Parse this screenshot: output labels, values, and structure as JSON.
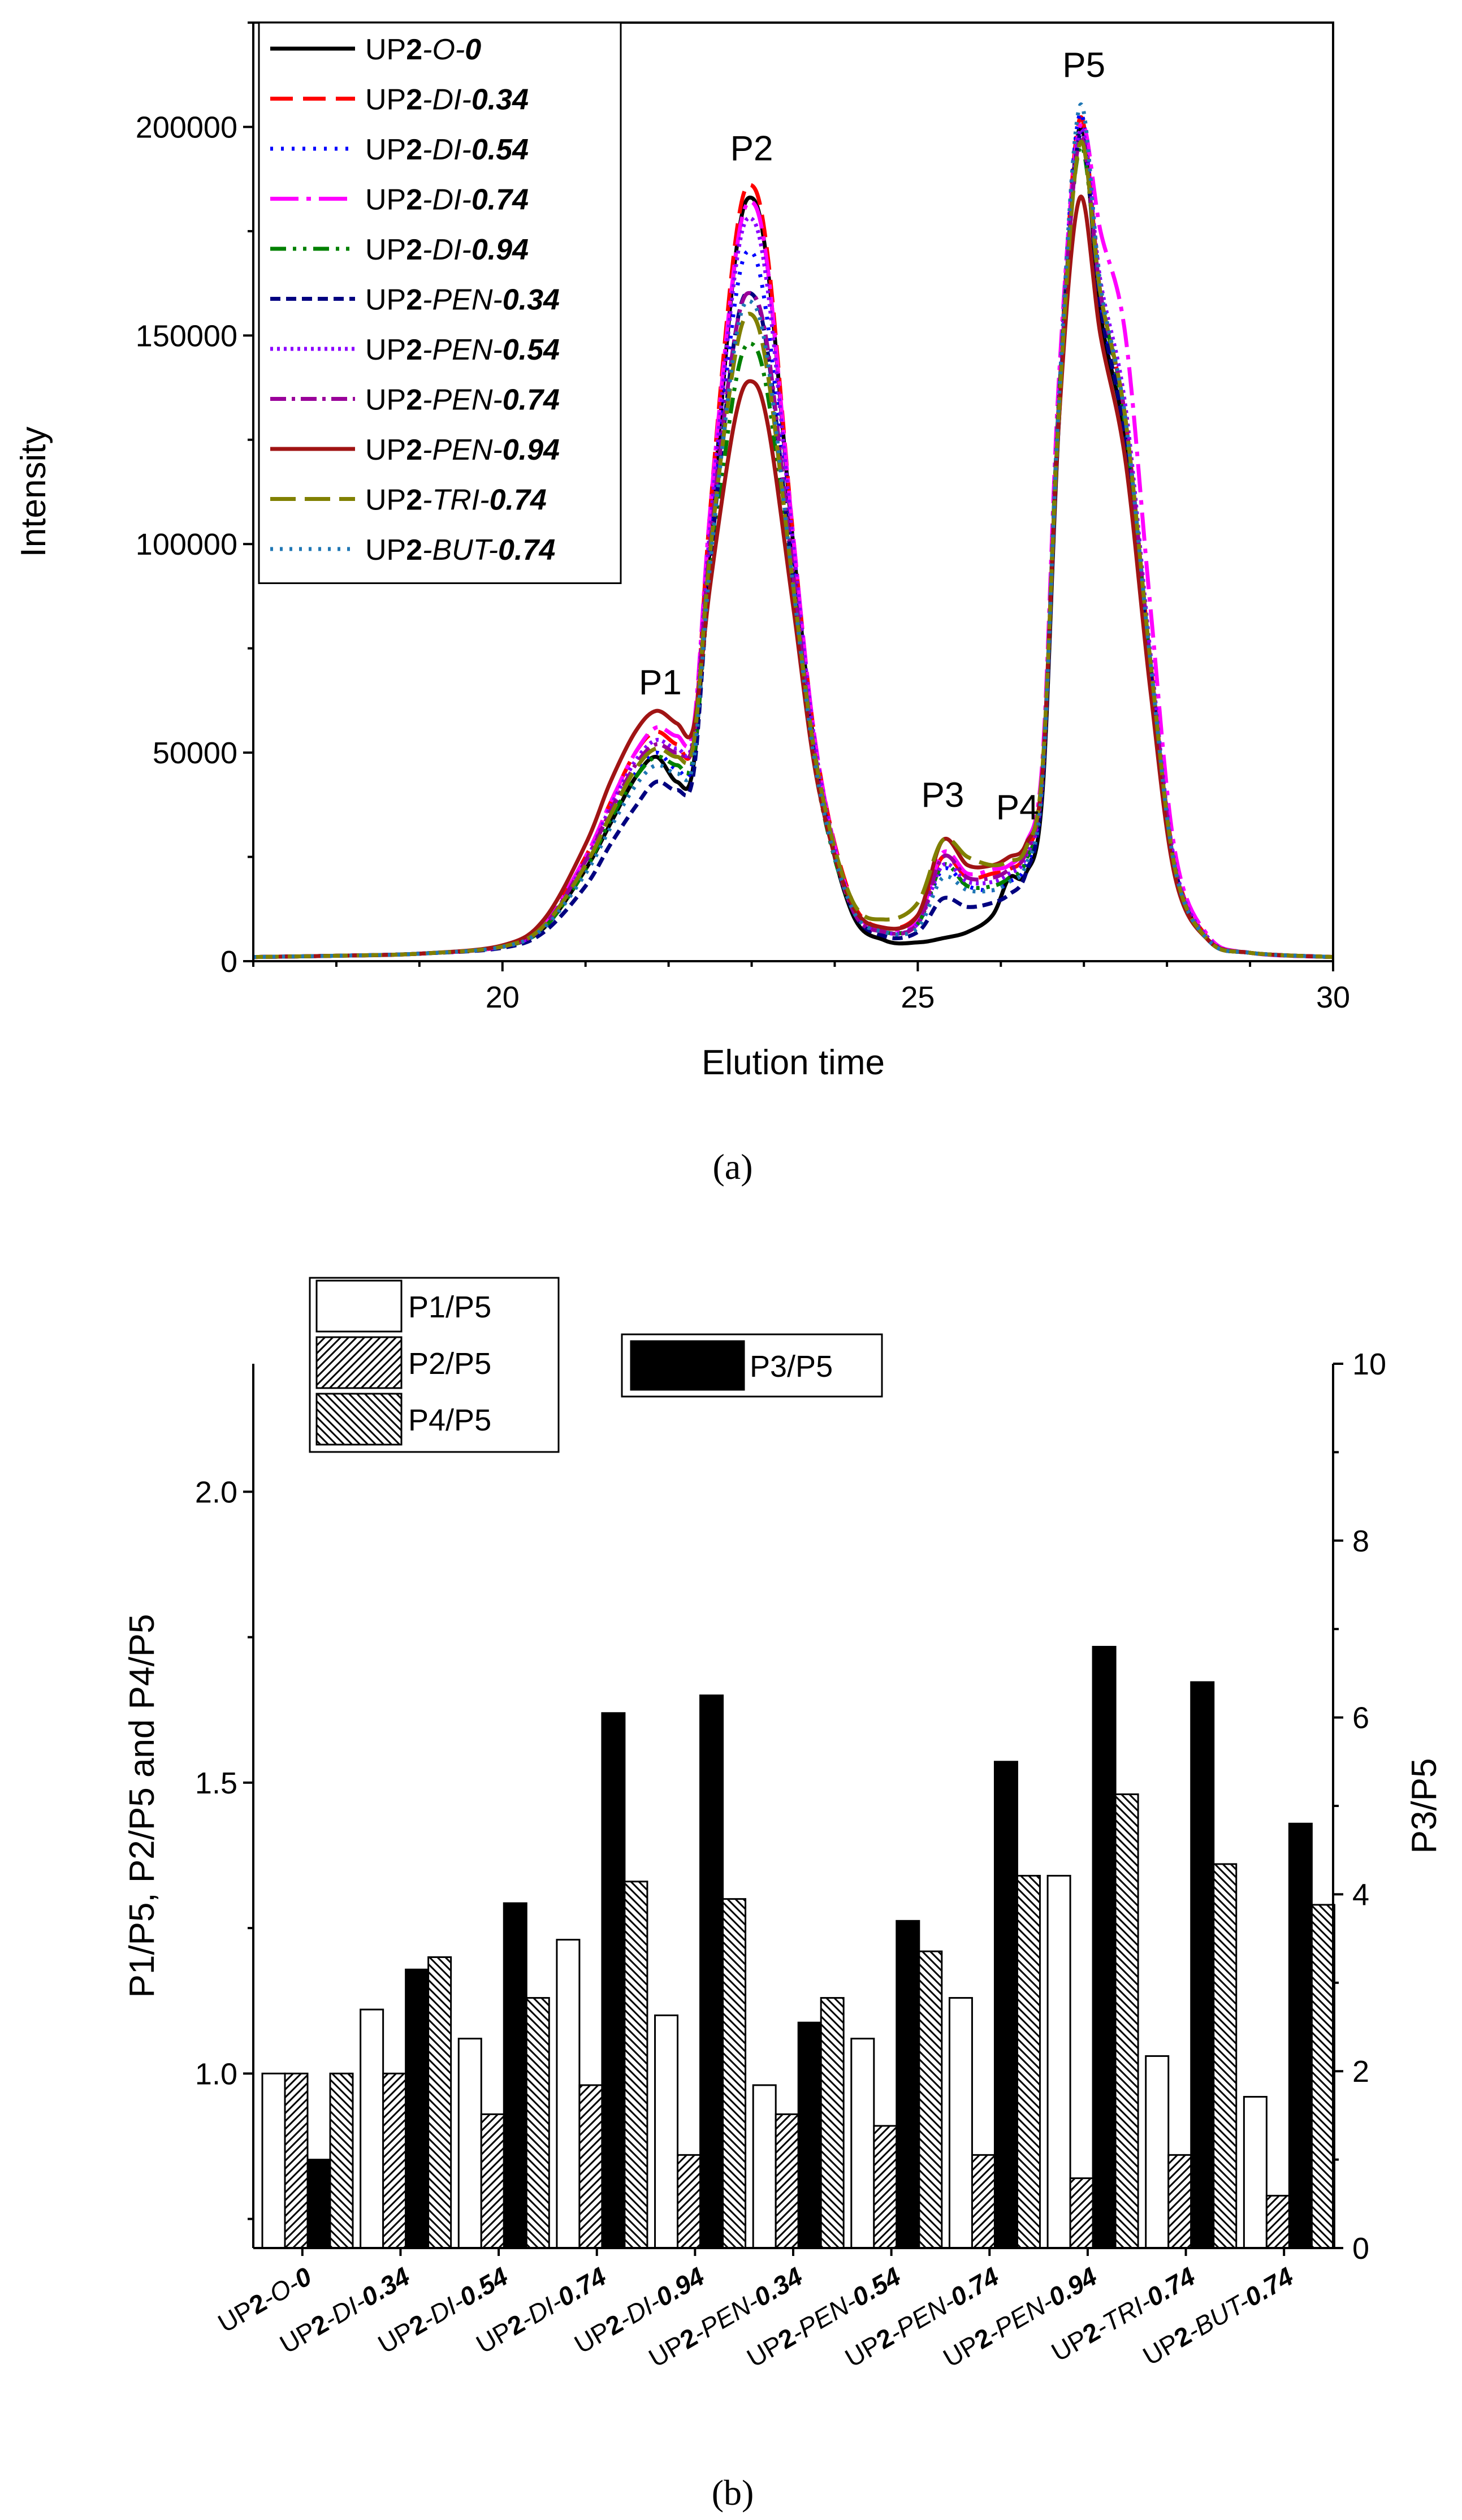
{
  "chart_data": [
    {
      "panel": "a",
      "type": "line",
      "caption": "(a)",
      "xlabel": "Elution time",
      "ylabel": "Intensity",
      "xlim": [
        17,
        30
      ],
      "ylim": [
        0,
        225000
      ],
      "xticks": [
        20,
        25,
        30
      ],
      "yticks": [
        0,
        50000,
        100000,
        150000,
        200000
      ],
      "xtick_labels": [
        "20",
        "25",
        "30"
      ],
      "ytick_labels": [
        "0",
        "50000",
        "100000",
        "150000",
        "200000"
      ],
      "legend_position": "top-left",
      "peak_labels": [
        {
          "label": "P1",
          "x": 21.9,
          "y": 64000
        },
        {
          "label": "P2",
          "x": 23.0,
          "y": 192000
        },
        {
          "label": "P3",
          "x": 25.3,
          "y": 37000
        },
        {
          "label": "P4",
          "x": 26.2,
          "y": 34000
        },
        {
          "label": "P5",
          "x": 27.0,
          "y": 212000
        }
      ],
      "x": [
        17,
        18,
        19,
        20,
        20.5,
        21,
        21.3,
        21.6,
        21.85,
        22.1,
        22.3,
        22.5,
        22.8,
        23.0,
        23.2,
        23.5,
        23.8,
        24.2,
        24.6,
        25.0,
        25.3,
        25.6,
        25.9,
        26.1,
        26.3,
        26.5,
        26.7,
        26.95,
        27.2,
        27.5,
        27.8,
        28.1,
        28.5,
        29,
        30
      ],
      "series": [
        {
          "name": "UP2-O-0",
          "color": "#000000",
          "dash": "",
          "legend": {
            "pre": "UP",
            "bold": "2",
            "mid": "-O-",
            "val": "0"
          },
          "values": [
            1000,
            1300,
            1800,
            3500,
            8000,
            22000,
            33000,
            44000,
            49000,
            43000,
            47000,
            100000,
            168000,
            183000,
            165000,
            100000,
            45000,
            12000,
            5000,
            4500,
            5500,
            7000,
            11000,
            20000,
            21000,
            40000,
            130000,
            200000,
            155000,
            125000,
            70000,
            22000,
            5000,
            2000,
            1000
          ]
        },
        {
          "name": "UP2-DI-0.34",
          "color": "#ff0000",
          "dash": "40,18",
          "legend": {
            "pre": "UP",
            "bold": "2",
            "mid": "-DI-",
            "val": "0.34"
          },
          "values": [
            1000,
            1300,
            1800,
            3600,
            9000,
            25000,
            38000,
            50000,
            55000,
            52000,
            53000,
            108000,
            172000,
            186000,
            168000,
            102000,
            48000,
            15000,
            8000,
            11000,
            25000,
            20000,
            21000,
            22000,
            26000,
            45000,
            135000,
            202000,
            160000,
            130000,
            72000,
            23000,
            5500,
            2000,
            1000
          ]
        },
        {
          "name": "UP2-DI-0.54",
          "color": "#0000ff",
          "dash": "5,14",
          "legend": {
            "pre": "UP",
            "bold": "2",
            "mid": "-DI-",
            "val": "0.54"
          },
          "values": [
            1000,
            1300,
            1800,
            3500,
            8500,
            23000,
            34000,
            45000,
            50000,
            46000,
            49000,
            100000,
            158000,
            170000,
            152000,
            95000,
            44000,
            13000,
            7000,
            9000,
            22000,
            18000,
            17000,
            19000,
            23000,
            42000,
            135000,
            203000,
            158000,
            128000,
            71000,
            22000,
            5000,
            2000,
            1000
          ]
        },
        {
          "name": "UP2-DI-0.74",
          "color": "#ff00ff",
          "dash": "50,14,8,14",
          "legend": {
            "pre": "UP",
            "bold": "2",
            "mid": "-DI-",
            "val": "0.74"
          },
          "values": [
            1000,
            1300,
            1800,
            3500,
            9000,
            25000,
            38000,
            50000,
            56000,
            54000,
            56000,
            108000,
            168000,
            182000,
            165000,
            102000,
            48000,
            14000,
            8000,
            10000,
            26000,
            21000,
            22000,
            23000,
            28000,
            48000,
            140000,
            200000,
            175000,
            150000,
            85000,
            26000,
            6000,
            2000,
            1000
          ]
        },
        {
          "name": "UP2-DI-0.94",
          "color": "#008000",
          "dash": "28,12,6,12,6,12",
          "legend": {
            "pre": "UP",
            "bold": "2",
            "mid": "-DI-",
            "val": "0.94"
          },
          "values": [
            1000,
            1300,
            1800,
            3500,
            8000,
            22000,
            34000,
            44000,
            49000,
            47000,
            49000,
            92000,
            138000,
            148000,
            135000,
            88000,
            42000,
            13000,
            7000,
            9000,
            23000,
            18000,
            18000,
            20000,
            24000,
            44000,
            135000,
            195000,
            160000,
            128000,
            70000,
            22000,
            5000,
            2000,
            1000
          ]
        },
        {
          "name": "UP2-PEN-0.34",
          "color": "#000080",
          "dash": "18,10",
          "legend": {
            "pre": "UP",
            "bold": "2",
            "mid": "-PEN-",
            "val": "0.34"
          },
          "values": [
            1000,
            1300,
            1800,
            3200,
            7000,
            18000,
            28000,
            37000,
            43000,
            41000,
            45000,
            95000,
            150000,
            160000,
            145000,
            92000,
            44000,
            13000,
            6000,
            7000,
            15000,
            13000,
            14000,
            16000,
            21000,
            42000,
            130000,
            198000,
            157000,
            125000,
            70000,
            22000,
            5000,
            2000,
            1000
          ]
        },
        {
          "name": "UP2-PEN-0.54",
          "color": "#8b00ff",
          "dash": "5,7",
          "legend": {
            "pre": "UP",
            "bold": "2",
            "mid": "-PEN-",
            "val": "0.54"
          },
          "values": [
            1000,
            1300,
            1800,
            3500,
            8500,
            24000,
            37000,
            48000,
            53000,
            51000,
            54000,
            104000,
            165000,
            178000,
            160000,
            100000,
            47000,
            14000,
            7000,
            9000,
            23000,
            19000,
            19000,
            21000,
            25000,
            44000,
            133000,
            199000,
            163000,
            133000,
            74000,
            23000,
            5500,
            2000,
            1000
          ]
        },
        {
          "name": "UP2-PEN-0.74",
          "color": "#990099",
          "dash": "28,10,6,10",
          "legend": {
            "pre": "UP",
            "bold": "2",
            "mid": "-PEN-",
            "val": "0.74"
          },
          "values": [
            1000,
            1300,
            1800,
            3500,
            8500,
            24000,
            36000,
            47000,
            52000,
            50000,
            53000,
            100000,
            150000,
            160000,
            146000,
            93000,
            44000,
            13000,
            7000,
            9000,
            25000,
            20000,
            20000,
            22000,
            26000,
            45000,
            133000,
            197000,
            160000,
            130000,
            72000,
            22000,
            5000,
            2000,
            1000
          ]
        },
        {
          "name": "UP2-PEN-0.94",
          "color": "#a01414",
          "dash": "",
          "legend": {
            "pre": "UP",
            "bold": "2",
            "mid": "-PEN-",
            "val": "0.94"
          },
          "values": [
            1000,
            1300,
            1800,
            3800,
            10000,
            28000,
            43000,
            55000,
            60000,
            57000,
            56000,
            90000,
            130000,
            139000,
            128000,
            85000,
            42000,
            14000,
            8000,
            11000,
            29000,
            23000,
            23000,
            25000,
            28000,
            45000,
            130000,
            183000,
            150000,
            120000,
            65000,
            20000,
            5000,
            2000,
            1000
          ]
        },
        {
          "name": "UP2-TRI-0.74",
          "color": "#808000",
          "dash": "45,16",
          "legend": {
            "pre": "UP",
            "bold": "2",
            "mid": "-TRI-",
            "val": "0.74"
          },
          "values": [
            1000,
            1300,
            1800,
            3500,
            8500,
            23000,
            35000,
            46000,
            51000,
            49000,
            52000,
            98000,
            145000,
            155000,
            140000,
            90000,
            45000,
            15000,
            10000,
            14000,
            29000,
            25000,
            23000,
            24000,
            27000,
            46000,
            132000,
            196000,
            160000,
            130000,
            72000,
            22000,
            5000,
            2000,
            1000
          ]
        },
        {
          "name": "UP2-BUT-0.74",
          "color": "#1f77b4",
          "dash": "5,12",
          "legend": {
            "pre": "UP",
            "bold": "2",
            "mid": "-BUT-",
            "val": "0.74"
          },
          "values": [
            1000,
            1300,
            1800,
            3400,
            8000,
            21000,
            32000,
            42000,
            47000,
            45000,
            48000,
            95000,
            148000,
            158000,
            143000,
            90000,
            43000,
            13000,
            7000,
            8000,
            20000,
            17000,
            17000,
            19000,
            23000,
            43000,
            135000,
            205000,
            162000,
            130000,
            72000,
            22000,
            5000,
            2000,
            1000
          ]
        }
      ]
    },
    {
      "panel": "b",
      "type": "bar",
      "caption": "(b)",
      "ylabel_left": "P1/P5, P2/P5 and P4/P5",
      "ylabel_right": "P3/P5",
      "ylim_left": [
        0.7,
        2.22
      ],
      "ylim_right": [
        0,
        10
      ],
      "yticks_left": [
        1.0,
        1.5,
        2.0
      ],
      "yticks_left_labels": [
        "1.0",
        "1.5",
        "2.0"
      ],
      "yticks_right": [
        0,
        2,
        4,
        6,
        8,
        10
      ],
      "yticks_right_labels": [
        "0",
        "2",
        "4",
        "6",
        "8",
        "10"
      ],
      "legend_left": [
        "P1/P5",
        "P2/P5",
        "P4/P5"
      ],
      "legend_right": [
        "P3/P5"
      ],
      "categories": [
        {
          "pre": "UP",
          "bold": "2",
          "mid": "-O-",
          "val": "0"
        },
        {
          "pre": "UP",
          "bold": "2",
          "mid": "-DI-",
          "val": "0.34"
        },
        {
          "pre": "UP",
          "bold": "2",
          "mid": "-DI-",
          "val": "0.54"
        },
        {
          "pre": "UP",
          "bold": "2",
          "mid": "-DI-",
          "val": "0.74"
        },
        {
          "pre": "UP",
          "bold": "2",
          "mid": "-DI-",
          "val": "0.94"
        },
        {
          "pre": "UP",
          "bold": "2",
          "mid": "-PEN-",
          "val": "0.34"
        },
        {
          "pre": "UP",
          "bold": "2",
          "mid": "-PEN-",
          "val": "0.54"
        },
        {
          "pre": "UP",
          "bold": "2",
          "mid": "-PEN-",
          "val": "0.74"
        },
        {
          "pre": "UP",
          "bold": "2",
          "mid": "-PEN-",
          "val": "0.94"
        },
        {
          "pre": "UP",
          "bold": "2",
          "mid": "-TRI-",
          "val": "0.74"
        },
        {
          "pre": "UP",
          "bold": "2",
          "mid": "-BUT-",
          "val": "0.74"
        }
      ],
      "series": [
        {
          "name": "P1/P5",
          "axis": "left",
          "fill": "white",
          "values": [
            1.0,
            1.11,
            1.06,
            1.23,
            1.1,
            0.98,
            1.06,
            1.13,
            1.34,
            1.03,
            0.96
          ]
        },
        {
          "name": "P2/P5",
          "axis": "left",
          "fill": "hatch-fwd",
          "values": [
            1.0,
            1.0,
            0.93,
            0.98,
            0.86,
            0.93,
            0.91,
            0.86,
            0.82,
            0.86,
            0.79
          ]
        },
        {
          "name": "P3/P5",
          "axis": "right",
          "fill": "black",
          "values": [
            1.0,
            3.15,
            3.9,
            6.05,
            6.25,
            2.55,
            3.7,
            5.5,
            6.8,
            6.4,
            4.8
          ]
        },
        {
          "name": "P4/P5",
          "axis": "left",
          "fill": "hatch-back",
          "values": [
            1.0,
            1.2,
            1.13,
            1.33,
            1.3,
            1.13,
            1.21,
            1.34,
            1.48,
            1.36,
            1.29
          ]
        }
      ]
    }
  ]
}
